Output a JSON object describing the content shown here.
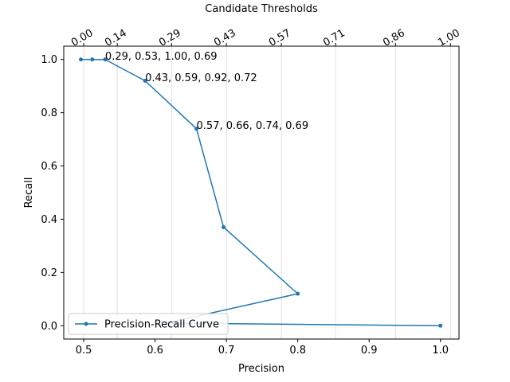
{
  "chart_data": {
    "type": "line",
    "xlabel": "Precision",
    "ylabel": "Recall",
    "top_xlabel": "Candidate Thresholds",
    "xlim": [
      0.472,
      1.026
    ],
    "ylim": [
      -0.05,
      1.05
    ],
    "x_ticks": [
      0.5,
      0.6,
      0.7,
      0.8,
      0.9,
      1.0
    ],
    "x_tick_labels": [
      "0.5",
      "0.6",
      "0.7",
      "0.8",
      "0.9",
      "1.0"
    ],
    "y_ticks": [
      0.0,
      0.2,
      0.4,
      0.6,
      0.8,
      1.0
    ],
    "y_tick_labels": [
      "0.0",
      "0.2",
      "0.4",
      "0.6",
      "0.8",
      "1.0"
    ],
    "top_ticks": [
      0.5,
      0.547,
      0.623,
      0.7,
      0.777,
      0.853,
      0.937,
      1.014
    ],
    "top_tick_labels": [
      "0.00",
      "0.14",
      "0.29",
      "0.43",
      "0.57",
      "0.71",
      "0.86",
      "1.00"
    ],
    "grid": "vertical",
    "legend_position": "lower-left",
    "series": [
      {
        "name": "Precision-Recall Curve",
        "color": "#1f77b4",
        "marker": "point",
        "x": [
          0.496,
          0.512,
          0.53,
          0.586,
          0.658,
          0.696,
          0.8,
          0.615,
          1.0
        ],
        "y": [
          1.0,
          1.0,
          1.0,
          0.92,
          0.74,
          0.37,
          0.12,
          0.01,
          0.0
        ]
      }
    ],
    "annotations": [
      {
        "text": "0.29, 0.53, 1.00, 0.69",
        "x": 0.53,
        "y": 1.0
      },
      {
        "text": "0.43, 0.59, 0.92, 0.72",
        "x": 0.586,
        "y": 0.92
      },
      {
        "text": "0.57, 0.66, 0.74, 0.69",
        "x": 0.658,
        "y": 0.74
      }
    ]
  }
}
